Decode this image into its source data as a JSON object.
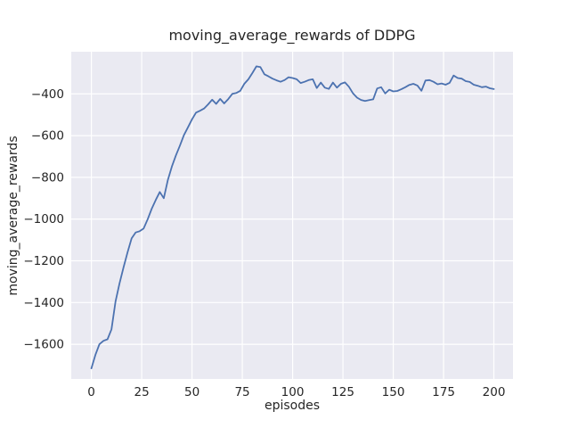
{
  "chart_data": {
    "type": "line",
    "title": "moving_average_rewards of DDPG",
    "xlabel": "episodes",
    "ylabel": "moving_average_rewards",
    "legend_position": "none",
    "grid": true,
    "xlim": [
      -10,
      209.5
    ],
    "ylim": [
      -1766,
      -198
    ],
    "xticks": [
      0,
      25,
      50,
      75,
      100,
      125,
      150,
      175,
      200
    ],
    "xtick_labels": [
      "0",
      "25",
      "50",
      "75",
      "100",
      "125",
      "150",
      "175",
      "200"
    ],
    "yticks": [
      -400,
      -600,
      -800,
      -1000,
      -1200,
      -1400,
      -1600
    ],
    "ytick_labels": [
      "−400",
      "−600",
      "−800",
      "−1000",
      "−1200",
      "−1400",
      "−1600"
    ],
    "colors": {
      "line": "#4c72b0",
      "plot_bg": "#eaeaf2",
      "grid": "#ffffff",
      "text": "#262626",
      "figure_bg": "#ffffff"
    },
    "series_name": "moving_average_rewards",
    "x": [
      0,
      2,
      4,
      6,
      8,
      10,
      12,
      14,
      16,
      18,
      20,
      22,
      24,
      26,
      28,
      30,
      32,
      34,
      36,
      38,
      40,
      42,
      44,
      46,
      48,
      50,
      52,
      54,
      56,
      58,
      60,
      62,
      64,
      66,
      68,
      70,
      72,
      74,
      76,
      78,
      80,
      82,
      84,
      86,
      88,
      90,
      92,
      94,
      96,
      98,
      100,
      102,
      104,
      106,
      108,
      110,
      112,
      114,
      116,
      118,
      120,
      122,
      124,
      126,
      128,
      130,
      132,
      134,
      136,
      138,
      140,
      142,
      144,
      146,
      148,
      150,
      152,
      154,
      156,
      158,
      160,
      162,
      164,
      166,
      168,
      170,
      172,
      174,
      176,
      178,
      180,
      182,
      184,
      186,
      188,
      190,
      192,
      194,
      196,
      198,
      200
    ],
    "values": [
      -1715,
      -1651,
      -1600,
      -1583,
      -1576,
      -1528,
      -1395,
      -1308,
      -1230,
      -1158,
      -1092,
      -1064,
      -1058,
      -1045,
      -1000,
      -950,
      -908,
      -870,
      -900,
      -812,
      -748,
      -695,
      -648,
      -598,
      -560,
      -522,
      -490,
      -481,
      -470,
      -450,
      -428,
      -448,
      -424,
      -446,
      -425,
      -400,
      -396,
      -385,
      -352,
      -330,
      -300,
      -268,
      -272,
      -306,
      -316,
      -327,
      -335,
      -342,
      -334,
      -320,
      -324,
      -330,
      -348,
      -342,
      -334,
      -330,
      -372,
      -346,
      -370,
      -376,
      -346,
      -370,
      -352,
      -345,
      -366,
      -398,
      -418,
      -429,
      -434,
      -430,
      -426,
      -374,
      -368,
      -398,
      -380,
      -388,
      -386,
      -378,
      -368,
      -357,
      -352,
      -360,
      -385,
      -336,
      -334,
      -342,
      -354,
      -350,
      -356,
      -347,
      -312,
      -324,
      -327,
      -339,
      -343,
      -356,
      -361,
      -368,
      -365,
      -373,
      -377
    ]
  }
}
